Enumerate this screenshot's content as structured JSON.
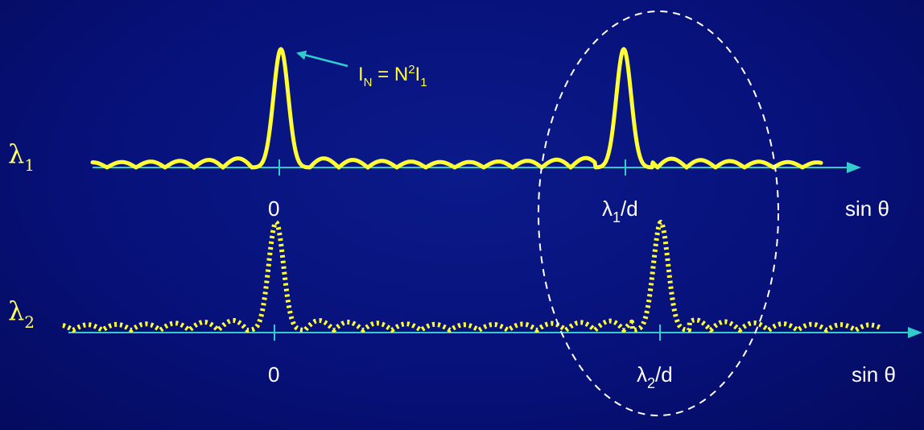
{
  "rows": [
    {
      "lambda": {
        "symbol": "λ",
        "sub": "1"
      },
      "origin_label": "0",
      "peak_label": {
        "symbol": "λ",
        "sub": "1",
        "suffix": "/d"
      },
      "axis_label": "sin θ",
      "line_style": "solid"
    },
    {
      "lambda": {
        "symbol": "λ",
        "sub": "2"
      },
      "origin_label": "0",
      "peak_label": {
        "symbol": "λ",
        "sub": "2",
        "suffix": "/d"
      },
      "axis_label": "sin θ",
      "line_style": "dotted"
    }
  ],
  "annotation": {
    "I": "I",
    "N_sub": "N",
    "eq": " = N",
    "sup": "2",
    "I2": "I",
    "one_sub": "1"
  },
  "colors": {
    "background": "#07117a",
    "curve": "#ffff33",
    "axis": "#33cccc",
    "text": "#ffffff",
    "lambda": "#ffff66",
    "ellipse": "#ffffff"
  }
}
